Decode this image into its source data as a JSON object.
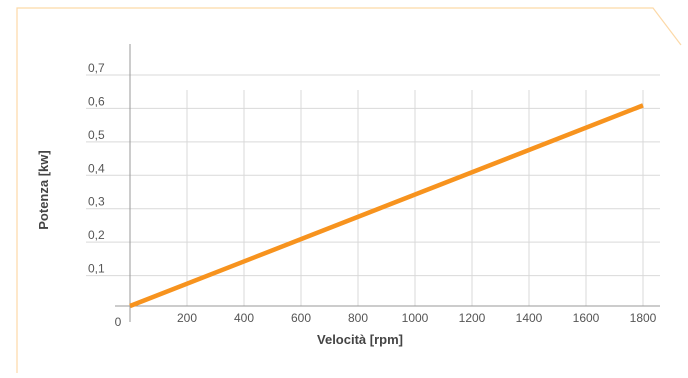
{
  "chart_data": {
    "type": "line",
    "title": "",
    "xlabel": "Velocità [rpm]",
    "ylabel": "Potenza [kw]",
    "xlim": [
      0,
      1800
    ],
    "ylim": [
      0,
      0.7
    ],
    "x_ticks": [
      200,
      400,
      600,
      800,
      1000,
      1200,
      1400,
      1600,
      1800
    ],
    "x_tick_labels": [
      "200",
      "400",
      "600",
      "800",
      "1000",
      "1200",
      "1400",
      "1600",
      "1800"
    ],
    "y_ticks": [
      0.1,
      0.2,
      0.3,
      0.4,
      0.5,
      0.6,
      0.7
    ],
    "y_tick_labels": [
      "0,1",
      "0,2",
      "0,3",
      "0,4",
      "0,5",
      "0,6",
      "0,7"
    ],
    "origin_label": "0",
    "grid": true,
    "series": [
      {
        "x": [
          0,
          1800
        ],
        "y": [
          0,
          0.6
        ]
      }
    ],
    "colors": {
      "line": "#F7931E",
      "frame": "#FCD9A8",
      "grid": "#D9D9D9",
      "axis": "#999999"
    }
  }
}
